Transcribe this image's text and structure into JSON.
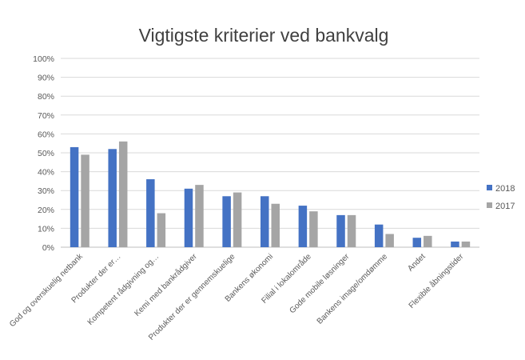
{
  "chart_data": {
    "type": "bar",
    "title": "Vigtigste kriterier  ved bankvalg",
    "xlabel": "",
    "ylabel": "",
    "ylim": [
      0,
      100
    ],
    "yticks": [
      "0%",
      "10%",
      "20%",
      "30%",
      "40%",
      "50%",
      "60%",
      "70%",
      "80%",
      "90%",
      "100%"
    ],
    "grid": true,
    "legend_position": "right",
    "categories": [
      "God og overskuelig netbank",
      "Produkter der er…",
      "Kompetent rådgivning og…",
      "Kemi med bankrådgiver",
      "Produkter der er gennemskuelige",
      "Bankens økonomi",
      "Filial i lokalområde",
      "Gode mobile løsninger",
      "Bankens image/omdømme",
      "Andet",
      "Flexible åbningstider"
    ],
    "series": [
      {
        "name": "2018",
        "color": "#4472C4",
        "values": [
          53,
          52,
          36,
          31,
          27,
          27,
          22,
          17,
          12,
          5,
          3
        ]
      },
      {
        "name": "2017",
        "color": "#A5A5A5",
        "values": [
          49,
          56,
          18,
          33,
          29,
          23,
          19,
          17,
          7,
          6,
          3
        ]
      }
    ]
  }
}
